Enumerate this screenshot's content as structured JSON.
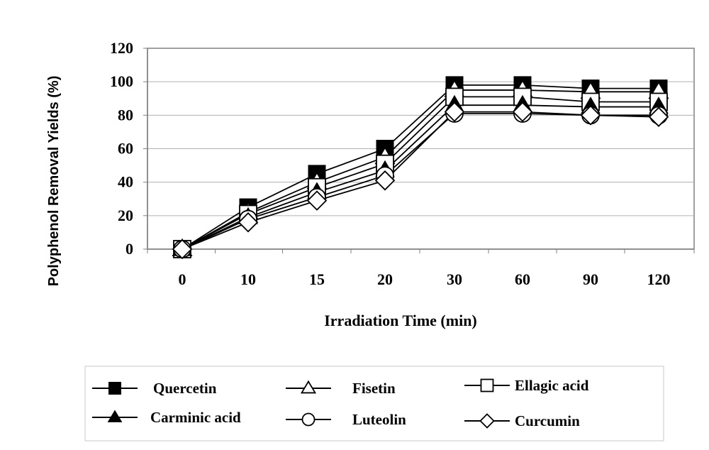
{
  "chart_data": {
    "type": "line",
    "title": "",
    "xlabel": "Irradiation Time (min)",
    "ylabel": "Polyphenol Removal Yields (%)",
    "categories": [
      "0",
      "10",
      "15",
      "20",
      "30",
      "60",
      "90",
      "120"
    ],
    "yticks": [
      "0",
      "20",
      "40",
      "60",
      "80",
      "100",
      "120"
    ],
    "ylim": [
      0,
      120
    ],
    "grid": true,
    "legend_position": "bottom",
    "series": [
      {
        "name": "Quercetin",
        "marker": "filled-square",
        "values": [
          0,
          25,
          45,
          60,
          98,
          98,
          96,
          96
        ]
      },
      {
        "name": "Fisetin",
        "marker": "open-triangle",
        "values": [
          0,
          22,
          40,
          55,
          95,
          95,
          94,
          94
        ]
      },
      {
        "name": "Ellagic acid",
        "marker": "open-square",
        "values": [
          0,
          21,
          37,
          51,
          91,
          91,
          88,
          88
        ]
      },
      {
        "name": "Carminic acid",
        "marker": "filled-triangle",
        "values": [
          0,
          19,
          34,
          47,
          86,
          86,
          85,
          85
        ]
      },
      {
        "name": "Luteolin",
        "marker": "open-circle",
        "values": [
          0,
          18,
          31,
          44,
          81,
          81,
          80,
          80
        ]
      },
      {
        "name": "Curcumin",
        "marker": "open-diamond",
        "values": [
          0,
          16,
          29,
          41,
          82,
          82,
          80,
          79
        ]
      }
    ]
  }
}
